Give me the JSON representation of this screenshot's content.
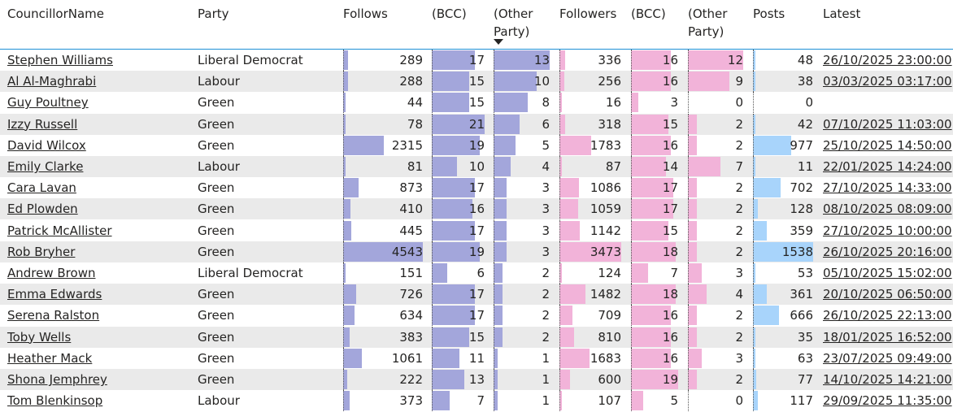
{
  "colors": {
    "follows_bar": "#a3a6db",
    "followers_bar": "#f2b3d9",
    "posts_bar": "#a8d4fb",
    "header_border": "#1e90d6"
  },
  "headers": {
    "councillor": "CouncillorName",
    "party": "Party",
    "follows": "Follows",
    "follows_bcc": "(BCC)",
    "follows_other": "(Other Party)",
    "followers": "Followers",
    "followers_bcc": "(BCC)",
    "followers_other": "(Other Party)",
    "posts": "Posts",
    "latest": "Latest"
  },
  "sort_column": "follows_other",
  "rows": [
    {
      "name": "Stephen Williams",
      "party": "Liberal Democrat",
      "follows": "289",
      "follows_bcc": "17",
      "follows_other": "13",
      "followers": "336",
      "followers_bcc": "16",
      "followers_other": "12",
      "posts": "48",
      "latest": "26/10/2025 23:00:00"
    },
    {
      "name": "Al Al-Maghrabi",
      "party": "Labour",
      "follows": "288",
      "follows_bcc": "15",
      "follows_other": "10",
      "followers": "256",
      "followers_bcc": "16",
      "followers_other": "9",
      "posts": "38",
      "latest": "03/03/2025 03:17:00"
    },
    {
      "name": "Guy Poultney",
      "party": "Green",
      "follows": "44",
      "follows_bcc": "15",
      "follows_other": "8",
      "followers": "16",
      "followers_bcc": "3",
      "followers_other": "0",
      "posts": "0",
      "latest": ""
    },
    {
      "name": "Izzy Russell",
      "party": "Green",
      "follows": "78",
      "follows_bcc": "21",
      "follows_other": "6",
      "followers": "318",
      "followers_bcc": "15",
      "followers_other": "2",
      "posts": "42",
      "latest": "07/10/2025 11:03:00"
    },
    {
      "name": "David Wilcox",
      "party": "Green",
      "follows": "2315",
      "follows_bcc": "19",
      "follows_other": "5",
      "followers": "1783",
      "followers_bcc": "16",
      "followers_other": "2",
      "posts": "977",
      "latest": "25/10/2025 14:50:00"
    },
    {
      "name": "Emily Clarke",
      "party": "Labour",
      "follows": "81",
      "follows_bcc": "10",
      "follows_other": "4",
      "followers": "87",
      "followers_bcc": "14",
      "followers_other": "7",
      "posts": "11",
      "latest": "22/01/2025 14:24:00"
    },
    {
      "name": "Cara Lavan",
      "party": "Green",
      "follows": "873",
      "follows_bcc": "17",
      "follows_other": "3",
      "followers": "1086",
      "followers_bcc": "17",
      "followers_other": "2",
      "posts": "702",
      "latest": "27/10/2025 14:33:00"
    },
    {
      "name": "Ed Plowden",
      "party": "Green",
      "follows": "410",
      "follows_bcc": "16",
      "follows_other": "3",
      "followers": "1059",
      "followers_bcc": "17",
      "followers_other": "2",
      "posts": "128",
      "latest": "08/10/2025 08:09:00"
    },
    {
      "name": "Patrick McAllister",
      "party": "Green",
      "follows": "445",
      "follows_bcc": "17",
      "follows_other": "3",
      "followers": "1142",
      "followers_bcc": "15",
      "followers_other": "2",
      "posts": "359",
      "latest": "27/10/2025 10:00:00"
    },
    {
      "name": "Rob Bryher",
      "party": "Green",
      "follows": "4543",
      "follows_bcc": "19",
      "follows_other": "3",
      "followers": "3473",
      "followers_bcc": "18",
      "followers_other": "2",
      "posts": "1538",
      "latest": "26/10/2025 20:16:00"
    },
    {
      "name": "Andrew Brown",
      "party": "Liberal Democrat",
      "follows": "151",
      "follows_bcc": "6",
      "follows_other": "2",
      "followers": "124",
      "followers_bcc": "7",
      "followers_other": "3",
      "posts": "53",
      "latest": "05/10/2025 15:02:00"
    },
    {
      "name": "Emma Edwards",
      "party": "Green",
      "follows": "726",
      "follows_bcc": "17",
      "follows_other": "2",
      "followers": "1482",
      "followers_bcc": "18",
      "followers_other": "4",
      "posts": "361",
      "latest": "20/10/2025 06:50:00"
    },
    {
      "name": "Serena Ralston",
      "party": "Green",
      "follows": "634",
      "follows_bcc": "17",
      "follows_other": "2",
      "followers": "709",
      "followers_bcc": "16",
      "followers_other": "2",
      "posts": "666",
      "latest": "26/10/2025 22:13:00"
    },
    {
      "name": "Toby Wells",
      "party": "Green",
      "follows": "383",
      "follows_bcc": "15",
      "follows_other": "2",
      "followers": "810",
      "followers_bcc": "16",
      "followers_other": "2",
      "posts": "35",
      "latest": "18/01/2025 16:52:00"
    },
    {
      "name": "Heather Mack",
      "party": "Green",
      "follows": "1061",
      "follows_bcc": "11",
      "follows_other": "1",
      "followers": "1683",
      "followers_bcc": "16",
      "followers_other": "3",
      "posts": "63",
      "latest": "23/07/2025 09:49:00"
    },
    {
      "name": "Shona Jemphrey",
      "party": "Green",
      "follows": "222",
      "follows_bcc": "13",
      "follows_other": "1",
      "followers": "600",
      "followers_bcc": "19",
      "followers_other": "2",
      "posts": "77",
      "latest": "14/10/2025 14:21:00"
    },
    {
      "name": "Tom Blenkinsop",
      "party": "Labour",
      "follows": "373",
      "follows_bcc": "7",
      "follows_other": "1",
      "followers": "107",
      "followers_bcc": "5",
      "followers_other": "0",
      "posts": "117",
      "latest": "29/09/2025 11:35:00"
    }
  ]
}
